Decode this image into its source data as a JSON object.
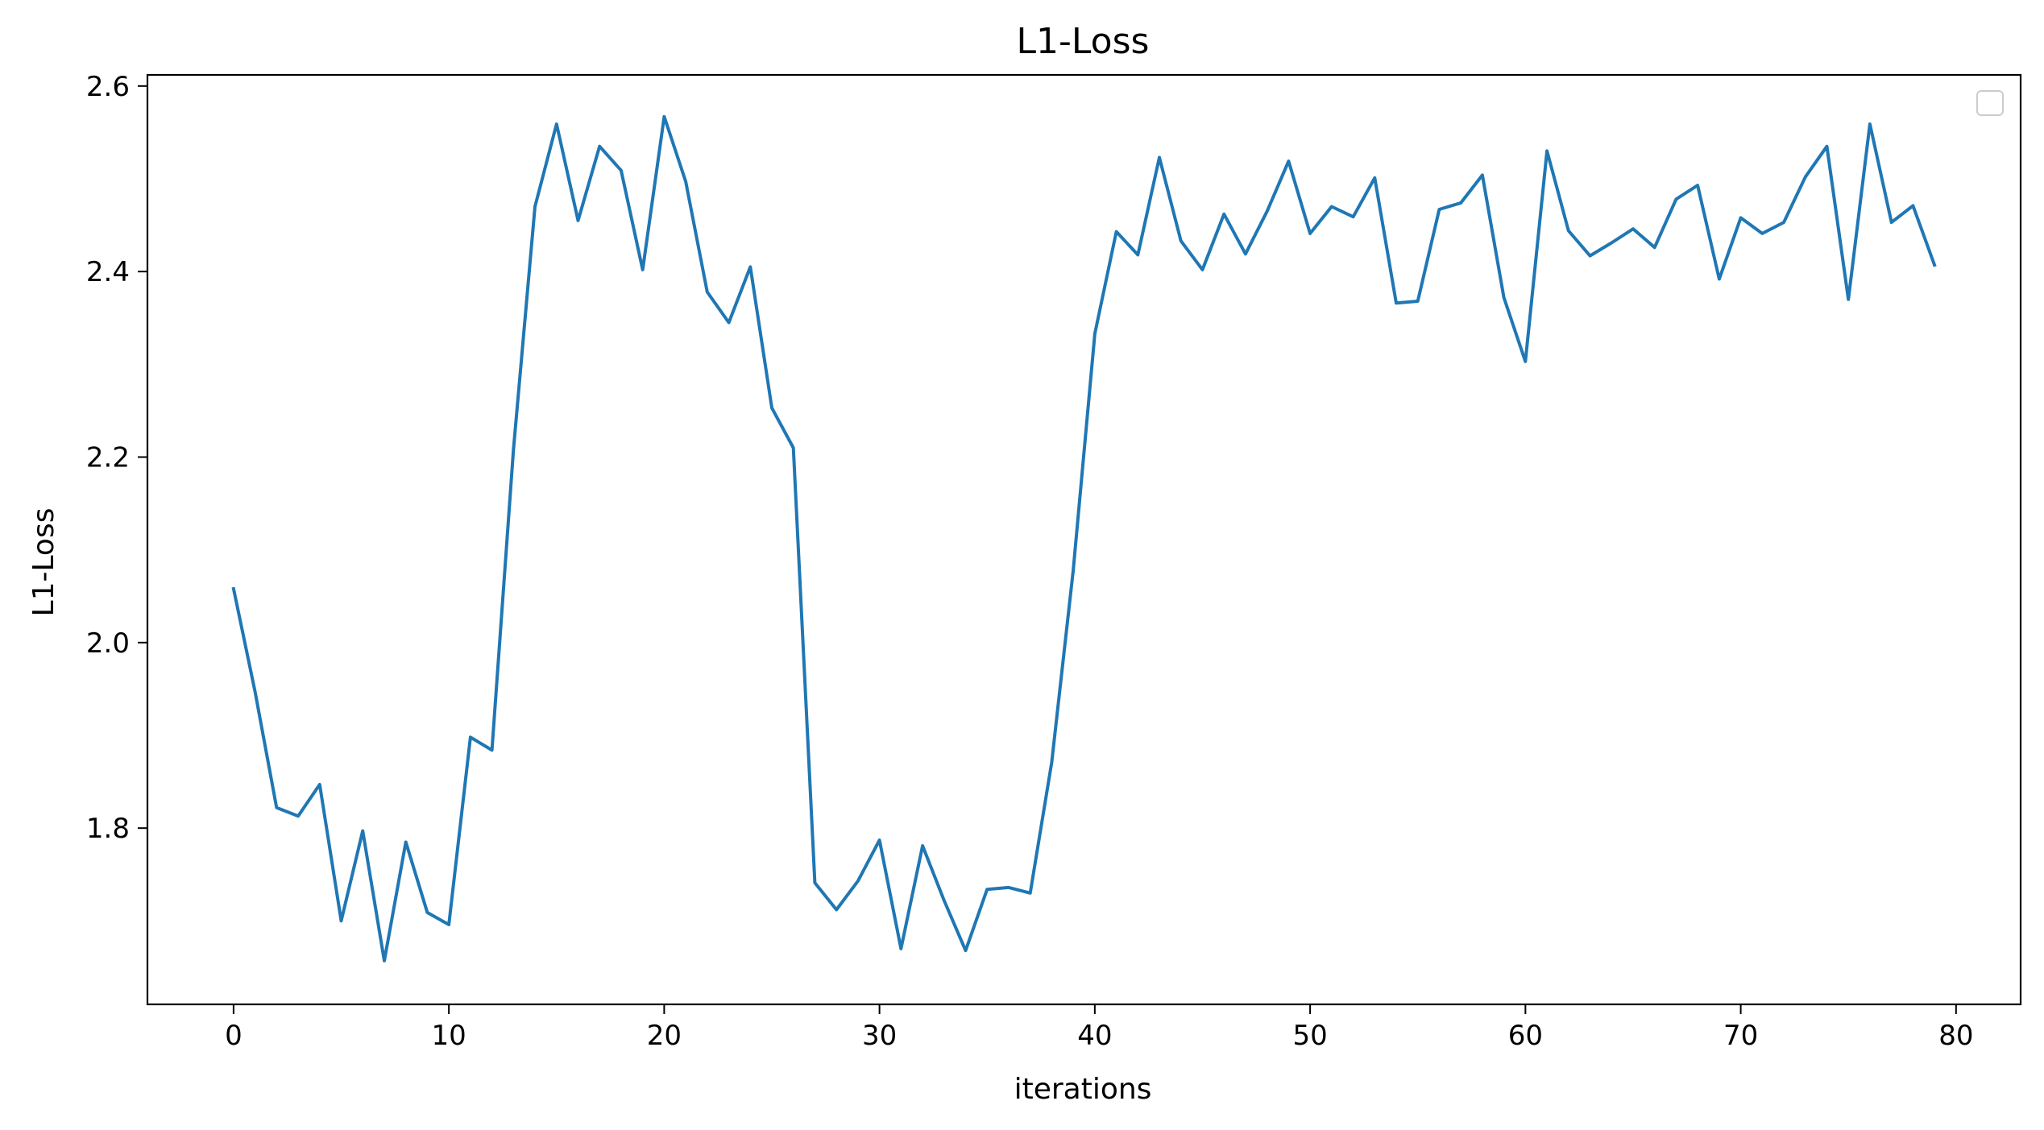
{
  "chart_data": {
    "type": "line",
    "title": "L1-Loss",
    "xlabel": "iterations",
    "ylabel": "L1-Loss",
    "xlim": [
      -4,
      83
    ],
    "ylim": [
      1.61,
      2.612
    ],
    "xticks": [
      0,
      10,
      20,
      30,
      40,
      50,
      60,
      70,
      80
    ],
    "yticks": [
      1.8,
      2.0,
      2.2,
      2.4,
      2.6
    ],
    "ytick_labels": [
      "1.8",
      "2.0",
      "2.2",
      "2.4",
      "2.6"
    ],
    "grid": false,
    "legend": {
      "placement": "top-right",
      "entries": []
    },
    "series": [
      {
        "color": "#1f77b4",
        "x": [
          0,
          1,
          2,
          3,
          4,
          5,
          6,
          7,
          8,
          9,
          10,
          11,
          12,
          13,
          14,
          15,
          16,
          17,
          18,
          19,
          20,
          21,
          22,
          23,
          24,
          25,
          26,
          27,
          28,
          29,
          30,
          31,
          32,
          33,
          34,
          35,
          36,
          37,
          38,
          39,
          40,
          41,
          42,
          43,
          44,
          45,
          46,
          47,
          48,
          49,
          50,
          51,
          52,
          53,
          54,
          55,
          56,
          57,
          58,
          59,
          60,
          61,
          62,
          63,
          64,
          65,
          66,
          67,
          68,
          69,
          70,
          71,
          72,
          73,
          74,
          75,
          76,
          77,
          78,
          79
        ],
        "values": [
          2.058,
          1.947,
          1.822,
          1.813,
          1.847,
          1.7,
          1.797,
          1.657,
          1.785,
          1.709,
          1.696,
          1.898,
          1.884,
          2.208,
          2.47,
          2.559,
          2.455,
          2.535,
          2.509,
          2.402,
          2.567,
          2.497,
          2.378,
          2.345,
          2.405,
          2.253,
          2.21,
          1.741,
          1.712,
          1.743,
          1.787,
          1.67,
          1.781,
          1.722,
          1.668,
          1.734,
          1.736,
          1.73,
          1.871,
          2.078,
          2.333,
          2.443,
          2.418,
          2.523,
          2.433,
          2.402,
          2.462,
          2.419,
          2.465,
          2.519,
          2.441,
          2.47,
          2.459,
          2.501,
          2.366,
          2.368,
          2.467,
          2.474,
          2.504,
          2.372,
          2.303,
          2.53,
          2.444,
          2.417,
          2.431,
          2.446,
          2.426,
          2.478,
          2.493,
          2.392,
          2.458,
          2.441,
          2.453,
          2.502,
          2.535,
          2.37,
          2.559,
          2.453,
          2.471,
          2.407
        ]
      }
    ]
  }
}
